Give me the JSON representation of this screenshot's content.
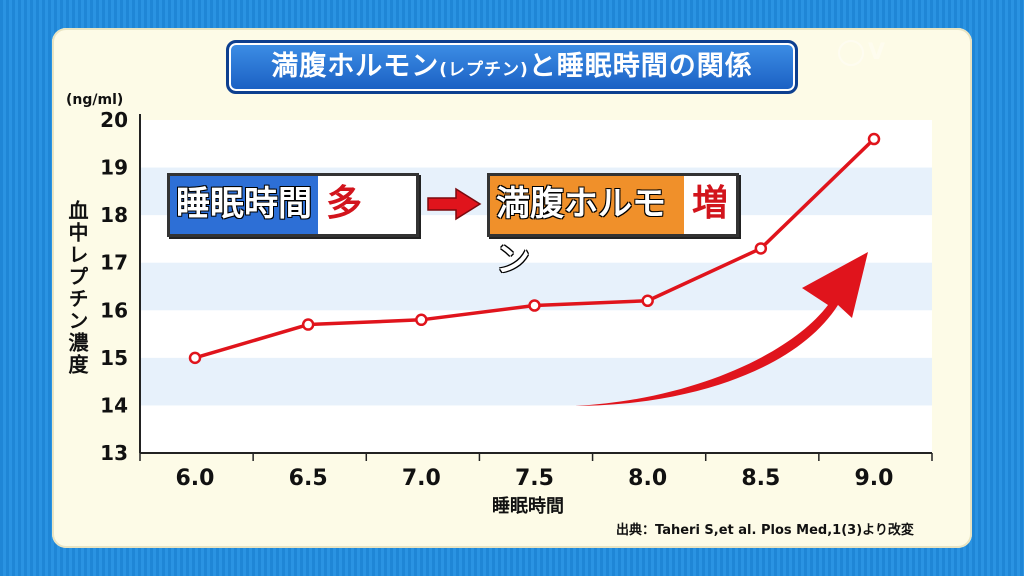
{
  "title": {
    "main_a": "満腹ホルモン",
    "paren": "(レプチン)",
    "main_b": "と睡眠時間の関係"
  },
  "logo": "V",
  "unit": "(ng/ml)",
  "ylabel": "血中レプチン濃度",
  "xlabel": "睡眠時間",
  "source": "出典：Taheri S,et al. Plos Med,1(3)より改変",
  "annotation": {
    "left_main": "睡眠時間",
    "left_tag": "多",
    "right_main": "満腹ホルモン",
    "right_tag": "増"
  },
  "colors": {
    "line": "#e0141c",
    "blue": "#2d6fd6",
    "orange": "#f0902a",
    "band": "#e7f1fb"
  },
  "chart_data": {
    "type": "line",
    "x": [
      6.0,
      6.5,
      7.0,
      7.5,
      8.0,
      8.5,
      9.0
    ],
    "x_tick_labels": [
      "6.0",
      "6.5",
      "7.0",
      "7.5",
      "8.0",
      "8.5",
      "9.0"
    ],
    "series": [
      {
        "values": [
          15.0,
          15.7,
          15.8,
          16.1,
          16.2,
          17.3,
          19.6
        ]
      }
    ],
    "ylim": [
      13,
      20
    ],
    "y_ticks": [
      13,
      14,
      15,
      16,
      17,
      18,
      19,
      20
    ],
    "xlabel": "睡眠時間",
    "ylabel": "血中レプチン濃度",
    "unit": "(ng/ml)"
  }
}
